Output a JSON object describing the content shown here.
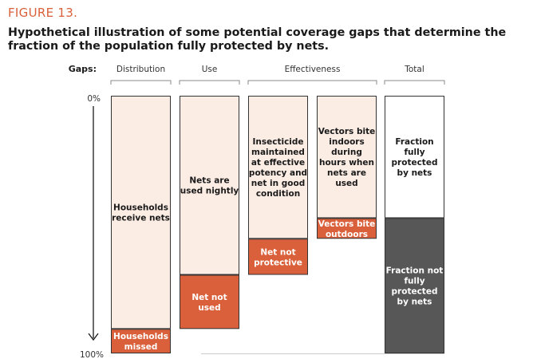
{
  "figure_label": "FIGURE 13.",
  "title": "Hypothetical illustration of some potential coverage gaps that determine the fraction of the population fully protected by nets.",
  "colors": {
    "light_fill": "#fbece4",
    "orange_fill": "#d9603a",
    "dark_fill": "#575757",
    "white_fill": "#ffffff",
    "outline": "#333333",
    "bracket": "#888888"
  },
  "chart_data": {
    "type": "bar",
    "title": "Hypothetical illustration of some potential coverage gaps that determine the fraction of the population fully protected by nets.",
    "gaps_label": "Gaps:",
    "y_axis": {
      "top_label": "0%",
      "bottom_label": "100%",
      "range": [
        0,
        100
      ]
    },
    "groups": [
      {
        "label": "Distribution",
        "bar_indices": [
          0
        ]
      },
      {
        "label": "Use",
        "bar_indices": [
          1
        ]
      },
      {
        "label": "Effectiveness",
        "bar_indices": [
          2,
          3
        ]
      },
      {
        "label": "Total",
        "bar_indices": [
          4
        ]
      }
    ],
    "bars": [
      {
        "segments": [
          {
            "from": 0,
            "to": 90.5,
            "label": "Households receive nets",
            "lines": [
              "Households",
              "receive nets"
            ],
            "color": "light"
          },
          {
            "from": 90.5,
            "to": 100,
            "label": "Households missed",
            "lines": [
              "Households",
              "missed"
            ],
            "color": "orange"
          }
        ]
      },
      {
        "segments": [
          {
            "from": 0,
            "to": 69.5,
            "label": "Nets are used nightly",
            "lines": [
              "Nets are",
              "used nightly"
            ],
            "color": "light"
          },
          {
            "from": 69.5,
            "to": 90.5,
            "label": "Net not used",
            "lines": [
              "Net not",
              "used"
            ],
            "color": "orange"
          }
        ]
      },
      {
        "segments": [
          {
            "from": 0,
            "to": 55.5,
            "label": "Insecticide maintained at effective potency and net in good condition",
            "lines": [
              "Insecticide",
              "maintained",
              "at effective",
              "potency and",
              "net in good",
              "condition"
            ],
            "color": "light"
          },
          {
            "from": 55.5,
            "to": 69.5,
            "label": "Net not protective",
            "lines": [
              "Net not",
              "protective"
            ],
            "color": "orange"
          }
        ]
      },
      {
        "segments": [
          {
            "from": 0,
            "to": 47.5,
            "label": "Vectors bite indoors during hours when nets are used",
            "lines": [
              "Vectors bite",
              "indoors",
              "during",
              "hours when",
              "nets are",
              "used"
            ],
            "color": "light"
          },
          {
            "from": 47.5,
            "to": 55.5,
            "label": "Vectors bite outdoors",
            "lines": [
              "Vectors bite",
              "outdoors"
            ],
            "color": "orange"
          }
        ]
      },
      {
        "segments": [
          {
            "from": 0,
            "to": 47.5,
            "label": "Fraction fully protected by nets",
            "lines": [
              "Fraction",
              "fully",
              "protected",
              "by nets"
            ],
            "color": "white"
          },
          {
            "from": 47.5,
            "to": 100,
            "label": "Fraction not fully protected by nets",
            "lines": [
              "Fraction not",
              "fully",
              "protected",
              "by nets"
            ],
            "color": "dark"
          }
        ]
      }
    ]
  }
}
